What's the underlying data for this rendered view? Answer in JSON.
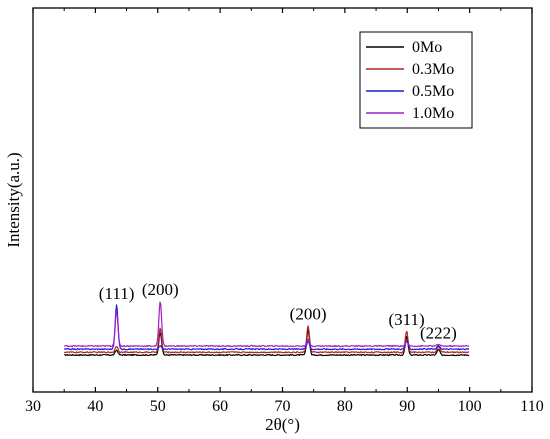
{
  "chart_data": {
    "type": "line",
    "title": "",
    "xlabel": "2θ(°)",
    "ylabel": "Intensity(a.u.)",
    "xlim": [
      30,
      110
    ],
    "xticks": [
      30,
      40,
      50,
      60,
      70,
      80,
      90,
      100,
      110
    ],
    "x_range_of_data": [
      35,
      100
    ],
    "yticks_shown": false,
    "grid": false,
    "legend_position": "top-right",
    "series": [
      {
        "name": "0Mo",
        "color": "#000000",
        "baseline": 0.0,
        "peaks": [
          {
            "x": 43.4,
            "height": 1.4
          },
          {
            "x": 50.4,
            "height": 6.7
          },
          {
            "x": 74.1,
            "height": 7.3
          },
          {
            "x": 89.9,
            "height": 5.4
          },
          {
            "x": 95.0,
            "height": 1.6
          }
        ]
      },
      {
        "name": "0.3Mo",
        "color": "#b22222",
        "baseline": 0.8,
        "peaks": [
          {
            "x": 43.4,
            "height": 1.8
          },
          {
            "x": 50.4,
            "height": 7.0
          },
          {
            "x": 74.1,
            "height": 7.7
          },
          {
            "x": 89.9,
            "height": 6.2
          },
          {
            "x": 95.0,
            "height": 1.7
          }
        ]
      },
      {
        "name": "0.5Mo",
        "color": "#1f1fd0",
        "baseline": 1.7,
        "peaks": [
          {
            "x": 43.4,
            "height": 12.8
          },
          {
            "x": 50.4,
            "height": 0.9
          },
          {
            "x": 74.1,
            "height": 2.3
          },
          {
            "x": 89.9,
            "height": 2.5
          },
          {
            "x": 95.0,
            "height": 1.0
          }
        ]
      },
      {
        "name": "1.0Mo",
        "color": "#a020c8",
        "baseline": 2.6,
        "peaks": [
          {
            "x": 43.4,
            "height": 10.0
          },
          {
            "x": 50.4,
            "height": 13.0
          },
          {
            "x": 74.1,
            "height": 1.8
          },
          {
            "x": 89.9,
            "height": 1.2
          },
          {
            "x": 95.0,
            "height": 0.5
          }
        ]
      }
    ],
    "annotations": [
      {
        "text": "(111)",
        "x": 43.4
      },
      {
        "text": "(200)",
        "x": 50.4
      },
      {
        "text": "(200)",
        "x": 74.1
      },
      {
        "text": "(311)",
        "x": 89.9
      },
      {
        "text": "(222)",
        "x": 95.0
      }
    ]
  }
}
